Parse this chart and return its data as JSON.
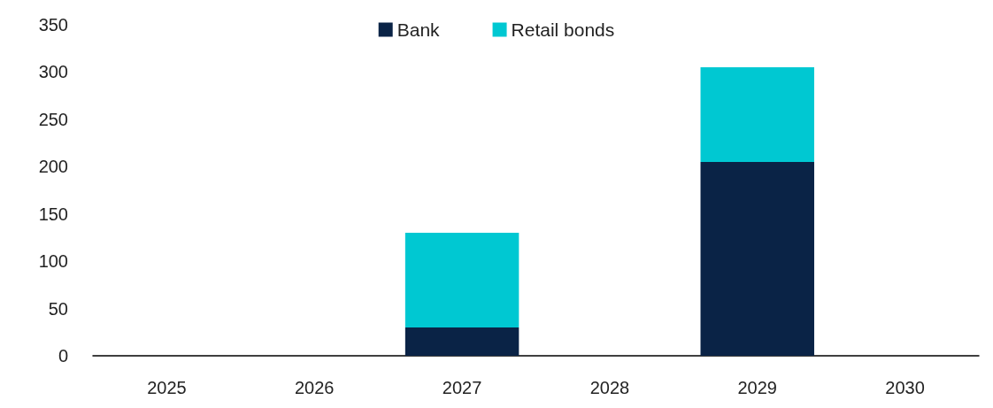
{
  "chart_data": {
    "type": "bar",
    "stacked": true,
    "categories": [
      "2025",
      "2026",
      "2027",
      "2028",
      "2029",
      "2030"
    ],
    "series": [
      {
        "name": "Bank",
        "color": "#0a2346",
        "values": [
          0,
          0,
          30,
          0,
          205,
          0
        ]
      },
      {
        "name": "Retail bonds",
        "color": "#00c8d2",
        "values": [
          0,
          0,
          100,
          0,
          100,
          0
        ]
      }
    ],
    "ylim": [
      0,
      350
    ],
    "yticks": [
      0,
      50,
      100,
      150,
      200,
      250,
      300,
      350
    ],
    "grid": false,
    "legend": "top"
  }
}
